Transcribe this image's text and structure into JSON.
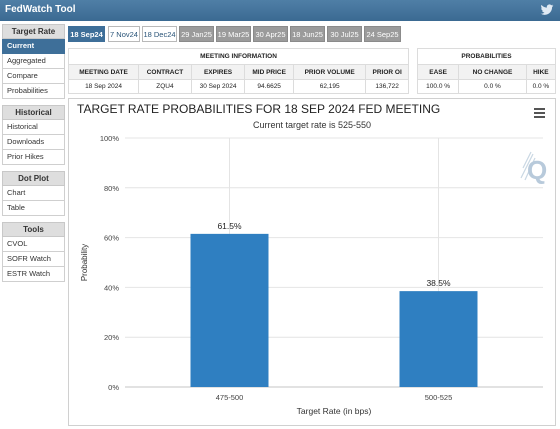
{
  "app": {
    "title": "FedWatch Tool",
    "twitter_icon": "twitter-bird-icon"
  },
  "sidebar": {
    "sections": [
      {
        "heading": "Target Rate",
        "items": [
          "Current",
          "Aggregated",
          "Compare",
          "Probabilities"
        ],
        "active": "Current"
      },
      {
        "heading": "Historical",
        "items": [
          "Historical",
          "Downloads",
          "Prior Hikes"
        ]
      },
      {
        "heading": "Dot Plot",
        "items": [
          "Chart",
          "Table"
        ]
      },
      {
        "heading": "Tools",
        "items": [
          "CVOL",
          "SOFR Watch",
          "ESTR Watch"
        ]
      }
    ]
  },
  "meeting_tabs": [
    {
      "label": "18 Sep24",
      "state": "selected"
    },
    {
      "label": "7 Nov24",
      "state": "available"
    },
    {
      "label": "18 Dec24",
      "state": "available"
    },
    {
      "label": "29 Jan25",
      "state": "disabled"
    },
    {
      "label": "19 Mar25",
      "state": "disabled"
    },
    {
      "label": "30 Apr25",
      "state": "disabled"
    },
    {
      "label": "18 Jun25",
      "state": "disabled"
    },
    {
      "label": "30 Jul25",
      "state": "disabled"
    },
    {
      "label": "24 Sep25",
      "state": "disabled"
    }
  ],
  "meeting_info": {
    "heading": "MEETING INFORMATION",
    "columns": [
      "MEETING DATE",
      "CONTRACT",
      "EXPIRES",
      "MID PRICE",
      "PRIOR VOLUME",
      "PRIOR OI"
    ],
    "values": [
      "18 Sep 2024",
      "ZQU4",
      "30 Sep 2024",
      "94.6625",
      "62,195",
      "136,722"
    ]
  },
  "probabilities": {
    "heading": "PROBABILITIES",
    "columns": [
      "EASE",
      "NO CHANGE",
      "HIKE"
    ],
    "values": [
      "100.0 %",
      "0.0 %",
      "0.0 %"
    ]
  },
  "chart_menu_icon": "hamburger-menu-icon",
  "chart_data": {
    "type": "bar",
    "title": "TARGET RATE PROBABILITIES FOR 18 SEP 2024 FED MEETING",
    "subtitle": "Current target rate is 525-550",
    "categories": [
      "475-500",
      "500-525"
    ],
    "values": [
      61.5,
      38.5
    ],
    "data_labels": [
      "61.5%",
      "38.5%"
    ],
    "xlabel": "Target Rate (in bps)",
    "ylabel": "Probability",
    "ylim": [
      0,
      100
    ],
    "yticks": [
      "0%",
      "20%",
      "40%",
      "60%",
      "80%",
      "100%"
    ],
    "grid": true,
    "bar_color": "#2f7fc1",
    "watermark": "Q"
  }
}
